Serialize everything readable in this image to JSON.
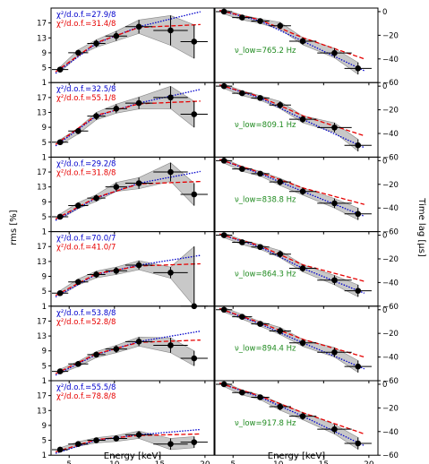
{
  "figure": {
    "left_ylabel": "rms [%]",
    "right_ylabel": "Time lag [μs]",
    "xlabel": "Energy [keV]",
    "x_ticks": [
      5,
      10,
      15,
      20
    ],
    "xlim": [
      3,
      21
    ],
    "left_ylim": [
      1,
      21
    ],
    "left_yticks": [
      1,
      5,
      9,
      13,
      17
    ],
    "right_ylim": [
      -60,
      3
    ],
    "right_yticks": [
      0,
      -20,
      -40,
      -60
    ]
  },
  "colors": {
    "model_1": "#0000cc",
    "model_2": "#e60000",
    "annotation": "#1f8a1f",
    "band": "#c8c8c8"
  },
  "energies": [
    4.0,
    6.0,
    8.0,
    10.2,
    12.7,
    16.2,
    18.8
  ],
  "energy_errors": [
    0.9,
    1.1,
    1.0,
    1.2,
    1.5,
    1.9,
    1.5
  ],
  "chart_data": [
    {
      "type": "scatter",
      "panel": "rms",
      "chi_blue": "χ²/d.o.f.=27.9/8",
      "chi_red": "χ²/d.o.f.=31.4/8",
      "y": [
        4.5,
        9.0,
        11.5,
        13.5,
        16.0,
        15.0,
        12.0
      ],
      "yerr": [
        0.7,
        0.8,
        1.0,
        1.3,
        1.8,
        4.0,
        4.5
      ]
    },
    {
      "type": "scatter",
      "panel": "lag",
      "nu_low": "ν_low=765.2 Hz",
      "y": [
        0,
        -5,
        -8,
        -12,
        -25,
        -35,
        -48
      ],
      "yerr": [
        2,
        2,
        2,
        3,
        3,
        4,
        5
      ]
    },
    {
      "type": "scatter",
      "panel": "rms",
      "chi_blue": "χ²/d.o.f.=32.5/8",
      "chi_red": "χ²/d.o.f.=55.1/8",
      "y": [
        5.0,
        8.0,
        12.0,
        14.0,
        15.5,
        17.0,
        12.5
      ],
      "yerr": [
        0.7,
        0.8,
        1.0,
        1.2,
        1.6,
        3.0,
        3.5
      ]
    },
    {
      "type": "scatter",
      "panel": "lag",
      "nu_low": "ν_low=809.1 Hz",
      "y": [
        0,
        -6,
        -10,
        -16,
        -28,
        -35,
        -50
      ],
      "yerr": [
        2,
        2,
        2,
        3,
        3,
        4,
        5
      ]
    },
    {
      "type": "scatter",
      "panel": "rms",
      "chi_blue": "χ²/d.o.f.=29.2/8",
      "chi_red": "χ²/d.o.f.=31.8/8",
      "y": [
        5.0,
        8.0,
        10.0,
        13.0,
        14.0,
        17.0,
        11.0
      ],
      "yerr": [
        0.7,
        0.8,
        0.9,
        1.2,
        1.5,
        2.5,
        3.0
      ]
    },
    {
      "type": "scatter",
      "panel": "lag",
      "nu_low": "ν_low=838.8 Hz",
      "y": [
        0,
        -7,
        -11,
        -18,
        -26,
        -36,
        -45
      ],
      "yerr": [
        2,
        2,
        2,
        3,
        3,
        4,
        5
      ]
    },
    {
      "type": "scatter",
      "panel": "rms",
      "chi_blue": "χ²/d.o.f.=70.0/7",
      "chi_red": "χ²/d.o.f.=41.0/7",
      "y": [
        4.5,
        7.5,
        9.5,
        10.5,
        12.0,
        10.0,
        1.0
      ],
      "yerr": [
        0.7,
        0.8,
        0.9,
        1.0,
        1.2,
        1.5,
        16.0
      ]
    },
    {
      "type": "scatter",
      "panel": "lag",
      "nu_low": "ν_low=864.3 Hz",
      "y": [
        0,
        -6,
        -10,
        -16,
        -28,
        -38,
        -47
      ],
      "yerr": [
        2,
        2,
        2,
        3,
        3,
        4,
        5
      ]
    },
    {
      "type": "scatter",
      "panel": "rms",
      "chi_blue": "χ²/d.o.f.=53.8/8",
      "chi_red": "χ²/d.o.f.=52.8/8",
      "y": [
        3.5,
        5.5,
        8.0,
        9.5,
        11.5,
        10.5,
        7.0
      ],
      "yerr": [
        0.6,
        0.7,
        0.8,
        1.0,
        1.2,
        2.0,
        2.0
      ]
    },
    {
      "type": "scatter",
      "panel": "lag",
      "nu_low": "ν_low=894.4 Hz",
      "y": [
        0,
        -6,
        -12,
        -18,
        -28,
        -36,
        -48
      ],
      "yerr": [
        2,
        2,
        2,
        3,
        3,
        4,
        5
      ]
    },
    {
      "type": "scatter",
      "panel": "rms",
      "chi_blue": "χ²/d.o.f.=55.5/8",
      "chi_red": "χ²/d.o.f.=78.8/8",
      "y": [
        2.5,
        4.0,
        5.0,
        5.5,
        6.5,
        4.0,
        4.5
      ],
      "yerr": [
        0.5,
        0.6,
        0.7,
        0.8,
        1.0,
        1.5,
        1.5
      ]
    },
    {
      "type": "scatter",
      "panel": "lag",
      "nu_low": "ν_low=917.8 Hz",
      "y": [
        0,
        -7,
        -11,
        -19,
        -27,
        -38,
        -50
      ],
      "yerr": [
        2,
        2,
        2,
        3,
        3,
        4,
        5
      ]
    }
  ]
}
